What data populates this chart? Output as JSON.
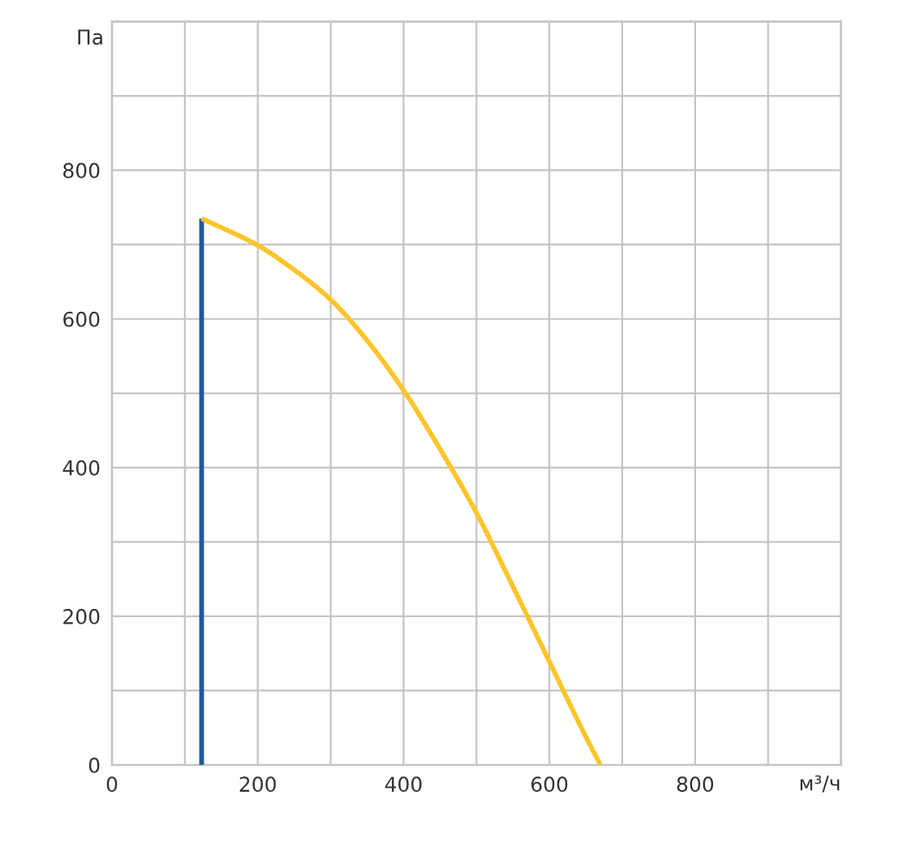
{
  "chart_data": {
    "type": "line",
    "xlabel": "м³/ч",
    "ylabel": "Па",
    "xlim": [
      0,
      1000
    ],
    "ylim": [
      0,
      1000
    ],
    "xticks": [
      0,
      {
        "value": 100,
        "label": null
      },
      200,
      {
        "value": 300,
        "label": null
      },
      400,
      {
        "value": 500,
        "label": null
      },
      600,
      {
        "value": 700,
        "label": null
      },
      800,
      {
        "value": 900,
        "label": null
      },
      {
        "value": 1000,
        "label": null
      }
    ],
    "yticks": [
      0,
      {
        "value": 100,
        "label": null
      },
      200,
      {
        "value": 300,
        "label": null
      },
      400,
      {
        "value": 500,
        "label": null
      },
      600,
      {
        "value": 700,
        "label": null
      },
      800,
      {
        "value": 900,
        "label": null
      },
      {
        "value": 1000,
        "label": null
      }
    ],
    "grid": true,
    "marker": "none",
    "line_style": "solid",
    "series": [
      {
        "color": "#1b5aa0",
        "x": [
          123,
          123
        ],
        "values": [
          0,
          735
        ]
      },
      {
        "color": "#fdc52a",
        "x": [
          123,
          150,
          200,
          250,
          300,
          350,
          400,
          450,
          500,
          550,
          600,
          650,
          670
        ],
        "values": [
          735,
          723,
          699,
          666,
          626,
          571,
          504,
          425,
          339,
          240,
          139,
          38,
          0
        ]
      }
    ]
  }
}
